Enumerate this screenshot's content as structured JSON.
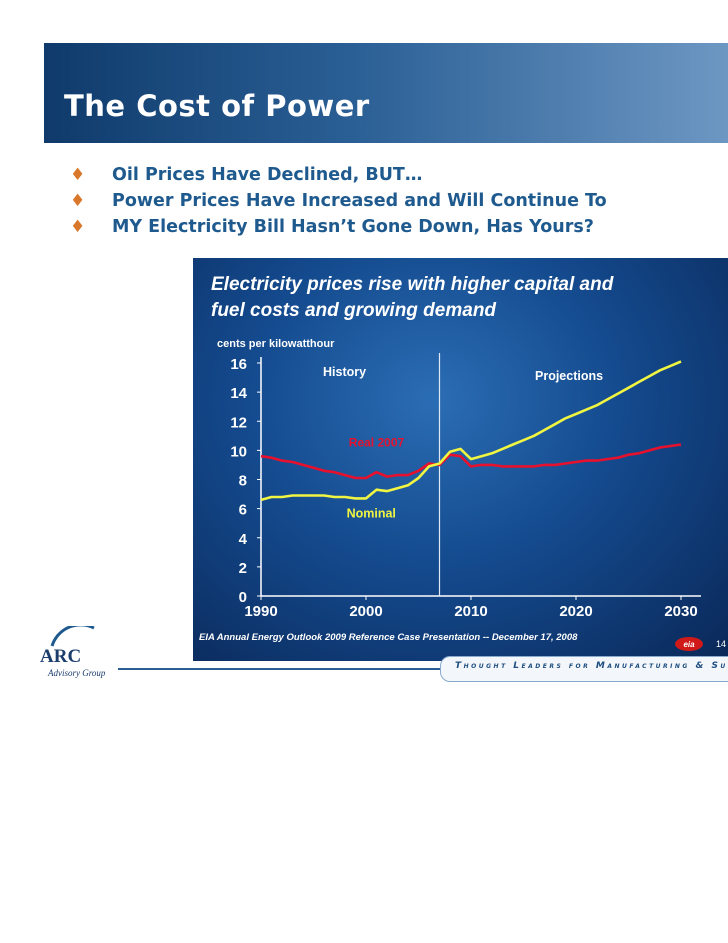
{
  "slide": {
    "title": "The Cost of Power",
    "bullets": [
      "Oil Prices Have Declined, BUT…",
      "Power Prices Have Increased and Will Continue To",
      "MY Electricity Bill Hasn’t Gone Down, Has Yours?"
    ],
    "bullet_color": "#d9782b",
    "text_color": "#1f5a8f"
  },
  "logo": {
    "name": "ARC",
    "subtitle": "Advisory Group"
  },
  "footer": {
    "tagline": "Thought Leaders for Manufacturing & Supply Ch"
  },
  "chart_data": {
    "type": "line",
    "title": "Electricity prices rise with higher capital and",
    "subtitle": "fuel costs and growing demand",
    "ylabel": "cents per kilowatthour",
    "xlabel": "",
    "ylim": [
      0,
      16
    ],
    "xlim": [
      1990,
      2030
    ],
    "yticks": [
      0,
      2,
      4,
      6,
      8,
      10,
      12,
      14,
      16
    ],
    "xticks": [
      1990,
      2000,
      2010,
      2020,
      2030
    ],
    "divider_year": 2007,
    "region_labels": {
      "history": "History",
      "projections": "Projections"
    },
    "source": "EIA Annual Energy Outlook 2009 Reference Case Presentation -- December 17, 2008",
    "page_number": "14",
    "badge": "eia",
    "colors": {
      "real": "#e8112d",
      "nominal": "#f0f542"
    },
    "series": [
      {
        "name": "Real 2007",
        "x": [
          1990,
          1991,
          1992,
          1993,
          1994,
          1995,
          1996,
          1997,
          1998,
          1999,
          2000,
          2001,
          2002,
          2003,
          2004,
          2005,
          2006,
          2007,
          2008,
          2009,
          2010,
          2011,
          2012,
          2013,
          2014,
          2015,
          2016,
          2017,
          2018,
          2019,
          2020,
          2021,
          2022,
          2023,
          2024,
          2025,
          2026,
          2027,
          2028,
          2029,
          2030
        ],
        "values": [
          9.6,
          9.5,
          9.3,
          9.2,
          9.0,
          8.8,
          8.6,
          8.5,
          8.3,
          8.1,
          8.1,
          8.5,
          8.2,
          8.3,
          8.3,
          8.6,
          9.1,
          9.0,
          9.7,
          9.6,
          8.9,
          9.0,
          9.0,
          8.9,
          8.9,
          8.9,
          8.9,
          9.0,
          9.0,
          9.1,
          9.2,
          9.3,
          9.3,
          9.4,
          9.5,
          9.7,
          9.8,
          10.0,
          10.2,
          10.3,
          10.4
        ]
      },
      {
        "name": "Nominal",
        "x": [
          1990,
          1991,
          1992,
          1993,
          1994,
          1995,
          1996,
          1997,
          1998,
          1999,
          2000,
          2001,
          2002,
          2003,
          2004,
          2005,
          2006,
          2007,
          2008,
          2009,
          2010,
          2011,
          2012,
          2013,
          2014,
          2015,
          2016,
          2017,
          2018,
          2019,
          2020,
          2021,
          2022,
          2023,
          2024,
          2025,
          2026,
          2027,
          2028,
          2029,
          2030
        ],
        "values": [
          6.6,
          6.8,
          6.8,
          6.9,
          6.9,
          6.9,
          6.9,
          6.8,
          6.8,
          6.7,
          6.7,
          7.3,
          7.2,
          7.4,
          7.6,
          8.1,
          8.9,
          9.1,
          9.9,
          10.1,
          9.4,
          9.6,
          9.8,
          10.1,
          10.4,
          10.7,
          11.0,
          11.4,
          11.8,
          12.2,
          12.5,
          12.8,
          13.1,
          13.5,
          13.9,
          14.3,
          14.7,
          15.1,
          15.5,
          15.8,
          16.1
        ]
      }
    ]
  }
}
